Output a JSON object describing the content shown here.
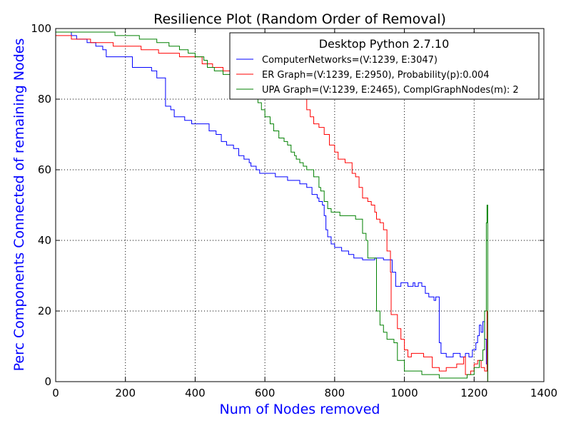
{
  "chart_data": {
    "type": "line",
    "title": "Resilience Plot (Random Order of Removal)",
    "xlabel": "Num of Nodes removed",
    "ylabel": "Perc Components Connected of remaining Nodes",
    "label_color": "#0000ff",
    "xlim": [
      0,
      1400
    ],
    "ylim": [
      0,
      100
    ],
    "xticks": [
      "0",
      "200",
      "400",
      "600",
      "800",
      "1000",
      "1200",
      "1400"
    ],
    "yticks": [
      "0",
      "20",
      "40",
      "60",
      "80",
      "100"
    ],
    "grid": true,
    "legend": {
      "title": "Desktop Python 2.7.10",
      "placement": "top-right"
    },
    "series": [
      {
        "name": "ComputerNetworks=(V:1239, E:3047)",
        "color": "#0000ff",
        "step": true,
        "points": [
          [
            0,
            99
          ],
          [
            40,
            99
          ],
          [
            45,
            98
          ],
          [
            60,
            97
          ],
          [
            90,
            96
          ],
          [
            115,
            95
          ],
          [
            135,
            94
          ],
          [
            145,
            92
          ],
          [
            160,
            92
          ],
          [
            185,
            92
          ],
          [
            215,
            92
          ],
          [
            220,
            89
          ],
          [
            265,
            89
          ],
          [
            275,
            88
          ],
          [
            285,
            88
          ],
          [
            290,
            86
          ],
          [
            310,
            86
          ],
          [
            315,
            78
          ],
          [
            330,
            77
          ],
          [
            340,
            75
          ],
          [
            370,
            74
          ],
          [
            390,
            73
          ],
          [
            430,
            73
          ],
          [
            440,
            71
          ],
          [
            460,
            70
          ],
          [
            475,
            68
          ],
          [
            490,
            67
          ],
          [
            500,
            67
          ],
          [
            510,
            66
          ],
          [
            525,
            64
          ],
          [
            540,
            63
          ],
          [
            555,
            62
          ],
          [
            560,
            61
          ],
          [
            575,
            60
          ],
          [
            585,
            59
          ],
          [
            620,
            59
          ],
          [
            630,
            58
          ],
          [
            665,
            57
          ],
          [
            695,
            57
          ],
          [
            700,
            56
          ],
          [
            720,
            55
          ],
          [
            735,
            53
          ],
          [
            750,
            52
          ],
          [
            755,
            51
          ],
          [
            765,
            50
          ],
          [
            770,
            47
          ],
          [
            775,
            43
          ],
          [
            780,
            41
          ],
          [
            790,
            39
          ],
          [
            800,
            38
          ],
          [
            820,
            37
          ],
          [
            840,
            36
          ],
          [
            855,
            35
          ],
          [
            875,
            35
          ],
          [
            880,
            34.5
          ],
          [
            900,
            34.5
          ],
          [
            915,
            35
          ],
          [
            930,
            35
          ],
          [
            940,
            34.5
          ],
          [
            960,
            34.5
          ],
          [
            965,
            31
          ],
          [
            975,
            27
          ],
          [
            990,
            28
          ],
          [
            1010,
            27
          ],
          [
            1025,
            28
          ],
          [
            1030,
            27
          ],
          [
            1040,
            28
          ],
          [
            1050,
            27
          ],
          [
            1060,
            25
          ],
          [
            1070,
            24
          ],
          [
            1085,
            23
          ],
          [
            1090,
            24
          ],
          [
            1100,
            11
          ],
          [
            1105,
            8
          ],
          [
            1120,
            7
          ],
          [
            1140,
            8
          ],
          [
            1160,
            7
          ],
          [
            1175,
            8
          ],
          [
            1185,
            7
          ],
          [
            1195,
            9
          ],
          [
            1205,
            11
          ],
          [
            1210,
            13
          ],
          [
            1215,
            16
          ],
          [
            1220,
            14
          ],
          [
            1225,
            17
          ],
          [
            1230,
            12
          ],
          [
            1235,
            5
          ],
          [
            1239,
            0
          ]
        ]
      },
      {
        "name": "ER Graph=(V:1239, E:2950), Probability(p):0.004",
        "color": "#ff0000",
        "step": true,
        "points": [
          [
            0,
            98
          ],
          [
            30,
            98
          ],
          [
            45,
            97
          ],
          [
            90,
            97
          ],
          [
            100,
            96
          ],
          [
            155,
            96
          ],
          [
            165,
            95
          ],
          [
            220,
            95
          ],
          [
            245,
            94
          ],
          [
            280,
            94
          ],
          [
            295,
            93
          ],
          [
            330,
            93
          ],
          [
            355,
            92
          ],
          [
            395,
            92
          ],
          [
            420,
            90
          ],
          [
            450,
            89
          ],
          [
            480,
            88
          ],
          [
            520,
            87
          ],
          [
            545,
            86
          ],
          [
            560,
            85
          ],
          [
            580,
            84
          ],
          [
            610,
            83
          ],
          [
            640,
            82
          ],
          [
            680,
            81
          ],
          [
            705,
            80
          ],
          [
            720,
            77
          ],
          [
            730,
            75
          ],
          [
            740,
            73
          ],
          [
            755,
            72
          ],
          [
            770,
            70
          ],
          [
            785,
            67
          ],
          [
            800,
            65
          ],
          [
            810,
            63
          ],
          [
            830,
            62
          ],
          [
            850,
            59
          ],
          [
            860,
            58
          ],
          [
            870,
            55
          ],
          [
            880,
            52
          ],
          [
            895,
            51
          ],
          [
            905,
            50
          ],
          [
            915,
            48
          ],
          [
            920,
            46
          ],
          [
            930,
            45
          ],
          [
            940,
            43
          ],
          [
            950,
            37
          ],
          [
            960,
            31
          ],
          [
            962,
            19
          ],
          [
            975,
            19
          ],
          [
            980,
            15
          ],
          [
            990,
            12
          ],
          [
            1000,
            9
          ],
          [
            1010,
            7
          ],
          [
            1020,
            8
          ],
          [
            1050,
            8
          ],
          [
            1055,
            7
          ],
          [
            1080,
            4
          ],
          [
            1100,
            3
          ],
          [
            1120,
            4
          ],
          [
            1150,
            5
          ],
          [
            1170,
            7
          ],
          [
            1175,
            2
          ],
          [
            1190,
            3
          ],
          [
            1200,
            5
          ],
          [
            1210,
            6
          ],
          [
            1220,
            4
          ],
          [
            1230,
            3
          ],
          [
            1237,
            20
          ],
          [
            1239,
            0
          ]
        ]
      },
      {
        "name": "UPA Graph=(V:1239, E:2465), ComplGraphNodes(m): 2",
        "color": "#008000",
        "step": true,
        "points": [
          [
            0,
            99
          ],
          [
            160,
            99
          ],
          [
            170,
            98
          ],
          [
            225,
            98
          ],
          [
            240,
            97
          ],
          [
            270,
            97
          ],
          [
            290,
            96
          ],
          [
            325,
            95
          ],
          [
            355,
            94
          ],
          [
            380,
            93
          ],
          [
            400,
            92
          ],
          [
            425,
            91
          ],
          [
            435,
            89
          ],
          [
            455,
            88
          ],
          [
            480,
            87
          ],
          [
            505,
            86
          ],
          [
            520,
            85
          ],
          [
            535,
            84
          ],
          [
            550,
            82
          ],
          [
            560,
            80
          ],
          [
            580,
            79
          ],
          [
            590,
            77
          ],
          [
            600,
            75
          ],
          [
            615,
            73
          ],
          [
            625,
            71
          ],
          [
            640,
            69
          ],
          [
            655,
            68
          ],
          [
            665,
            67
          ],
          [
            675,
            65
          ],
          [
            685,
            64
          ],
          [
            690,
            63
          ],
          [
            700,
            62
          ],
          [
            710,
            61
          ],
          [
            720,
            60
          ],
          [
            740,
            58
          ],
          [
            755,
            55
          ],
          [
            760,
            54
          ],
          [
            770,
            51
          ],
          [
            780,
            49
          ],
          [
            790,
            48
          ],
          [
            815,
            47
          ],
          [
            845,
            47
          ],
          [
            860,
            46
          ],
          [
            880,
            42
          ],
          [
            890,
            40
          ],
          [
            895,
            35
          ],
          [
            915,
            35
          ],
          [
            920,
            20
          ],
          [
            930,
            16
          ],
          [
            940,
            14
          ],
          [
            950,
            12
          ],
          [
            970,
            11
          ],
          [
            980,
            6
          ],
          [
            1000,
            3
          ],
          [
            1040,
            3
          ],
          [
            1050,
            2
          ],
          [
            1080,
            2
          ],
          [
            1100,
            1
          ],
          [
            1150,
            1
          ],
          [
            1180,
            2
          ],
          [
            1200,
            4
          ],
          [
            1215,
            6
          ],
          [
            1225,
            9
          ],
          [
            1230,
            20
          ],
          [
            1235,
            45
          ],
          [
            1237,
            50
          ],
          [
            1239,
            0
          ]
        ]
      }
    ]
  }
}
